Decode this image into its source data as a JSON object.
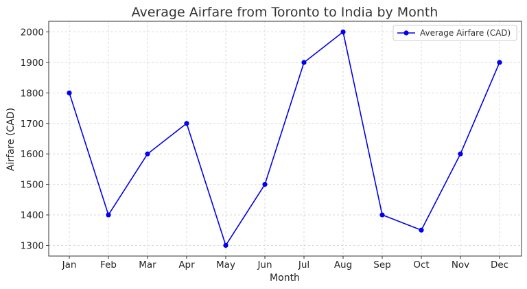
{
  "chart_data": {
    "type": "line",
    "title": "Average Airfare from Toronto to India by Month",
    "xlabel": "Month",
    "ylabel": "Airfare (CAD)",
    "categories": [
      "Jan",
      "Feb",
      "Mar",
      "Apr",
      "May",
      "Jun",
      "Jul",
      "Aug",
      "Sep",
      "Oct",
      "Nov",
      "Dec"
    ],
    "series": [
      {
        "name": "Average Airfare (CAD)",
        "values": [
          1800,
          1400,
          1600,
          1700,
          1300,
          1500,
          1900,
          2000,
          1400,
          1350,
          1600,
          1900
        ],
        "color": "#0000ee",
        "marker": "circle"
      }
    ],
    "ylim": [
      1265,
      2035
    ],
    "yticks": [
      1300,
      1400,
      1500,
      1600,
      1700,
      1800,
      1900,
      2000
    ],
    "grid": true,
    "legend_position": "upper right"
  }
}
